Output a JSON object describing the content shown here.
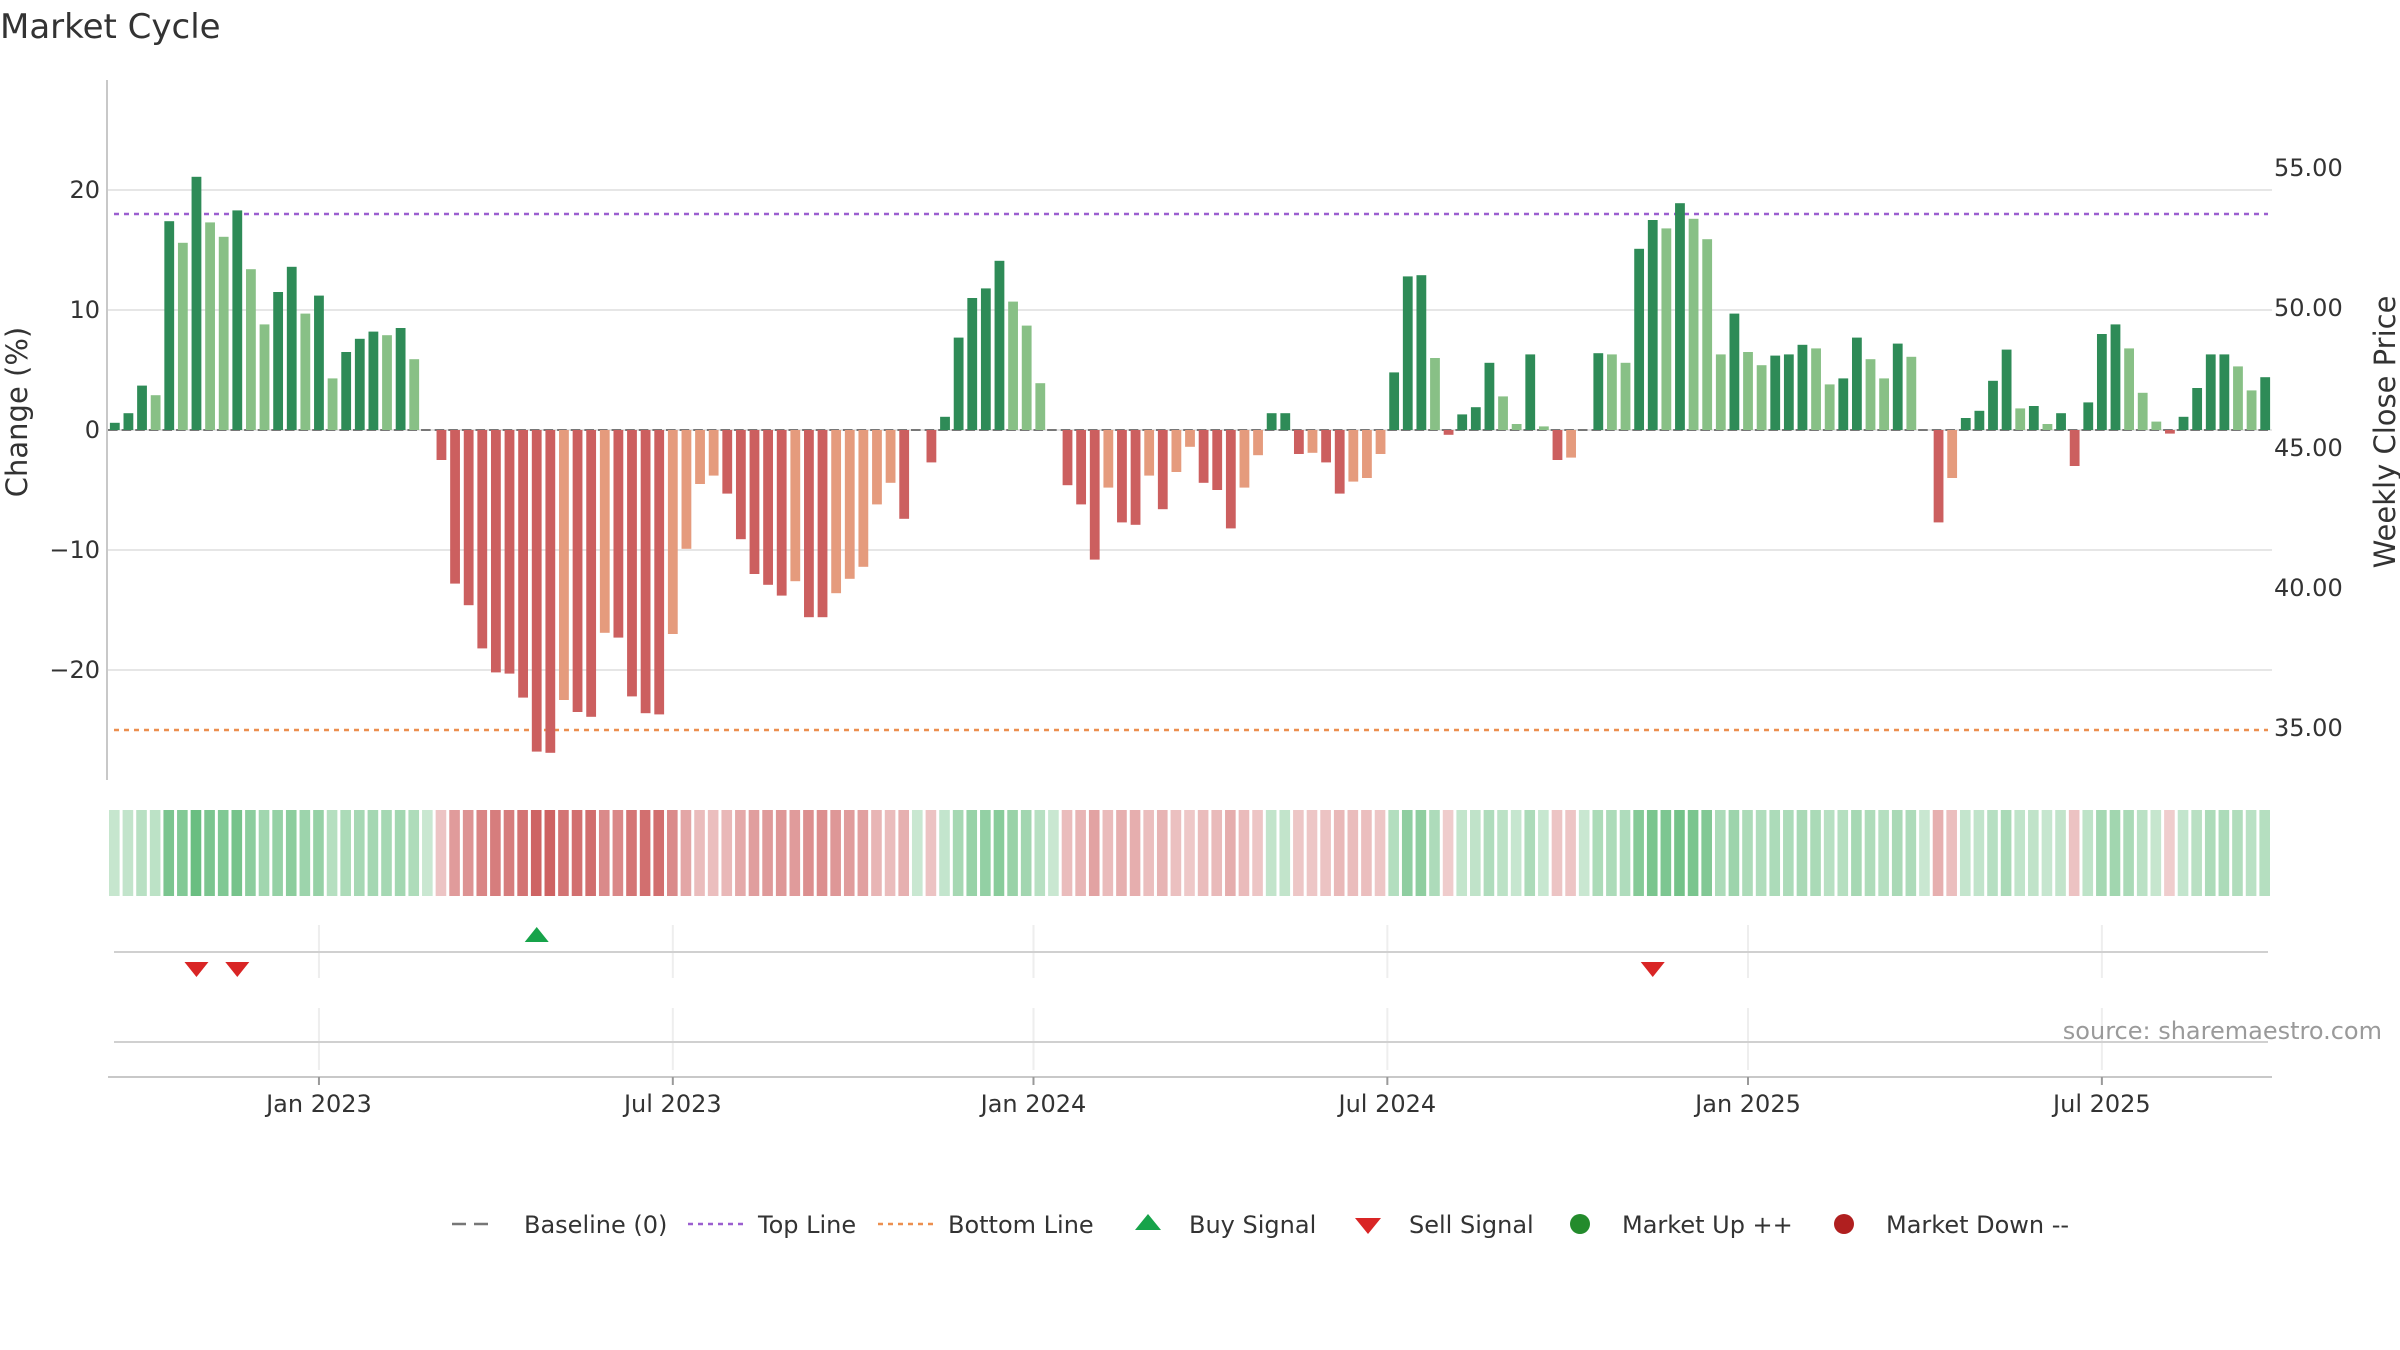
{
  "title": "Market Cycle",
  "source_note": "source: sharemaestro.com",
  "colors": {
    "pos_strong": "#2e8b57",
    "pos_light": "#88c086",
    "neg_strong": "#cc5f5f",
    "neg_light": "#e59b7d",
    "top_line": "#9b5fd0",
    "bottom_line": "#ec8f4f",
    "buy": "#17a34a",
    "sell": "#d92525",
    "market_up": "#238b2c",
    "market_down": "#b01f1f",
    "baseline": "#777777",
    "grid": "#e6e6e6"
  },
  "chart_data": {
    "type": "bar",
    "title": "Market Cycle",
    "ylabel_left": "Change (%)",
    "ylabel_right": "Weekly Close Price",
    "ylim_left": [
      -29,
      29
    ],
    "ylim_right": [
      32.8,
      58.2
    ],
    "left_ticks": [
      {
        "v": -20,
        "label": "−20"
      },
      {
        "v": -10,
        "label": "−10"
      },
      {
        "v": 0,
        "label": "0"
      },
      {
        "v": 10,
        "label": "10"
      },
      {
        "v": 20,
        "label": "20"
      }
    ],
    "right_ticks": [
      {
        "v": 35,
        "label": "35.00"
      },
      {
        "v": 40,
        "label": "40.00"
      },
      {
        "v": 45,
        "label": "45.00"
      },
      {
        "v": 50,
        "label": "50.00"
      },
      {
        "v": 55,
        "label": "55.00"
      }
    ],
    "top_line": 18,
    "bottom_line": -25,
    "x_tick_labels": [
      {
        "week": 15,
        "label": "Jan 2023"
      },
      {
        "week": 41,
        "label": "Jul 2023"
      },
      {
        "week": 67.5,
        "label": "Jan 2024"
      },
      {
        "week": 93.5,
        "label": "Jul 2024"
      },
      {
        "week": 120,
        "label": "Jan 2025"
      },
      {
        "week": 146,
        "label": "Jul 2025"
      }
    ],
    "series": [
      {
        "name": "weekly change",
        "values": [
          0.6,
          1.4,
          3.7,
          2.9,
          17.4,
          15.6,
          21.1,
          17.3,
          16.1,
          18.3,
          13.4,
          8.8,
          11.5,
          13.6,
          9.7,
          11.2,
          4.3,
          6.5,
          7.6,
          8.2,
          7.9,
          8.5,
          5.9,
          0,
          -2.5,
          -12.8,
          -14.6,
          -18.2,
          -20.2,
          -20.3,
          -22.3,
          -26.8,
          -26.9,
          -22.5,
          -23.5,
          -23.9,
          -16.9,
          -17.3,
          -22.2,
          -23.6,
          -23.7,
          -17.0,
          -9.9,
          -4.5,
          -3.8,
          -5.3,
          -9.1,
          -12.0,
          -12.9,
          -13.8,
          -12.6,
          -15.6,
          -15.6,
          -13.6,
          -12.4,
          -11.4,
          -6.2,
          -4.4,
          -7.4,
          0,
          -2.7,
          1.1,
          7.7,
          11.0,
          11.8,
          14.1,
          10.7,
          8.7,
          3.9,
          0,
          -4.6,
          -6.2,
          -10.8,
          -4.8,
          -7.7,
          -7.9,
          -3.8,
          -6.6,
          -3.5,
          -1.4,
          -4.4,
          -5.0,
          -8.2,
          -4.8,
          -2.1,
          1.4,
          1.4,
          -2.0,
          -1.9,
          -2.7,
          -5.3,
          -4.3,
          -4.0,
          -2.0,
          4.8,
          12.8,
          12.9,
          6.0,
          -0.4,
          1.3,
          1.9,
          5.6,
          2.8,
          0.5,
          6.3,
          0.3,
          -2.5,
          -2.3,
          0,
          6.4,
          6.3,
          5.6,
          15.1,
          17.5,
          16.8,
          18.9,
          17.6,
          15.9,
          6.3,
          9.7,
          6.5,
          5.4,
          6.2,
          6.3,
          7.1,
          6.8,
          3.8,
          4.3,
          7.7,
          5.9,
          4.3,
          7.2,
          6.1,
          0,
          -7.7,
          -4.0,
          1.0,
          1.6,
          4.1,
          6.7,
          1.8,
          2.0,
          0.5,
          1.4,
          -3.0,
          2.3,
          8.0,
          8.8,
          6.8,
          3.1,
          0.7,
          -0.3,
          1.1,
          3.5,
          6.3,
          6.3,
          5.3,
          3.3,
          4.4
        ]
      }
    ],
    "signals": {
      "buy": [
        31
      ],
      "sell": [
        6,
        9,
        113
      ]
    },
    "legend": [
      {
        "key": "baseline",
        "label": "Baseline (0)"
      },
      {
        "key": "top",
        "label": "Top Line"
      },
      {
        "key": "bottom",
        "label": "Bottom Line"
      },
      {
        "key": "buy",
        "label": "Buy Signal"
      },
      {
        "key": "sell",
        "label": "Sell Signal"
      },
      {
        "key": "up",
        "label": "Market Up ++"
      },
      {
        "key": "down",
        "label": "Market Down --"
      }
    ]
  }
}
